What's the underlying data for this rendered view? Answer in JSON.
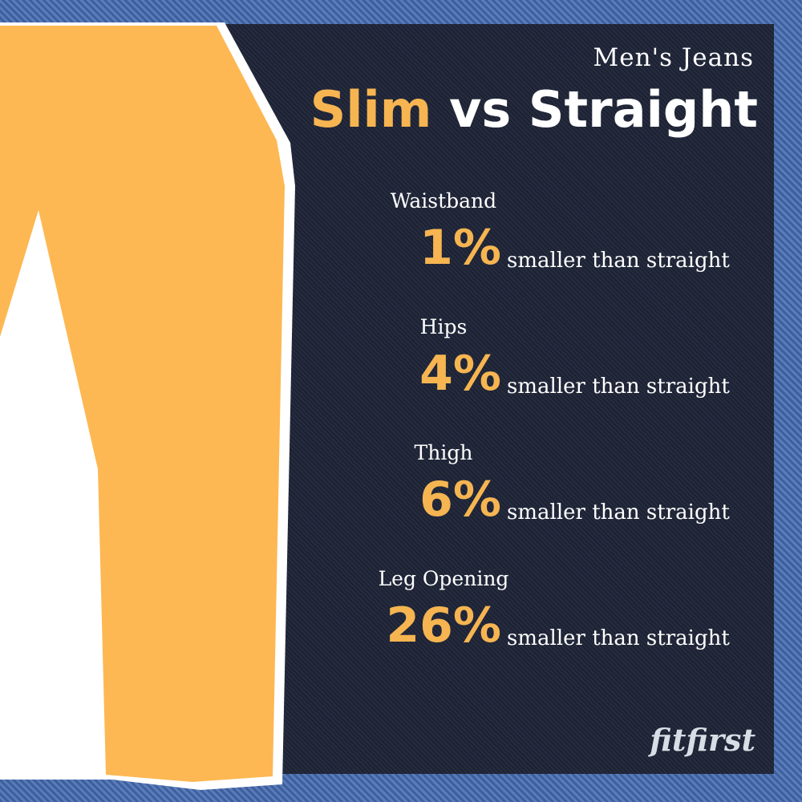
{
  "header": {
    "subtitle": "Men's Jeans",
    "title_highlight": "Slim",
    "title_rest": "vs Straight"
  },
  "items": [
    {
      "label": "Waistband",
      "value": "1%",
      "text": "smaller than straight"
    },
    {
      "label": "Hips",
      "value": "4%",
      "text": "smaller than straight"
    },
    {
      "label": "Thigh",
      "value": "6%",
      "text": "smaller than straight"
    },
    {
      "label": "Leg Opening",
      "value": "26%",
      "text": "smaller than straight"
    }
  ],
  "logo": "fitfirst"
}
